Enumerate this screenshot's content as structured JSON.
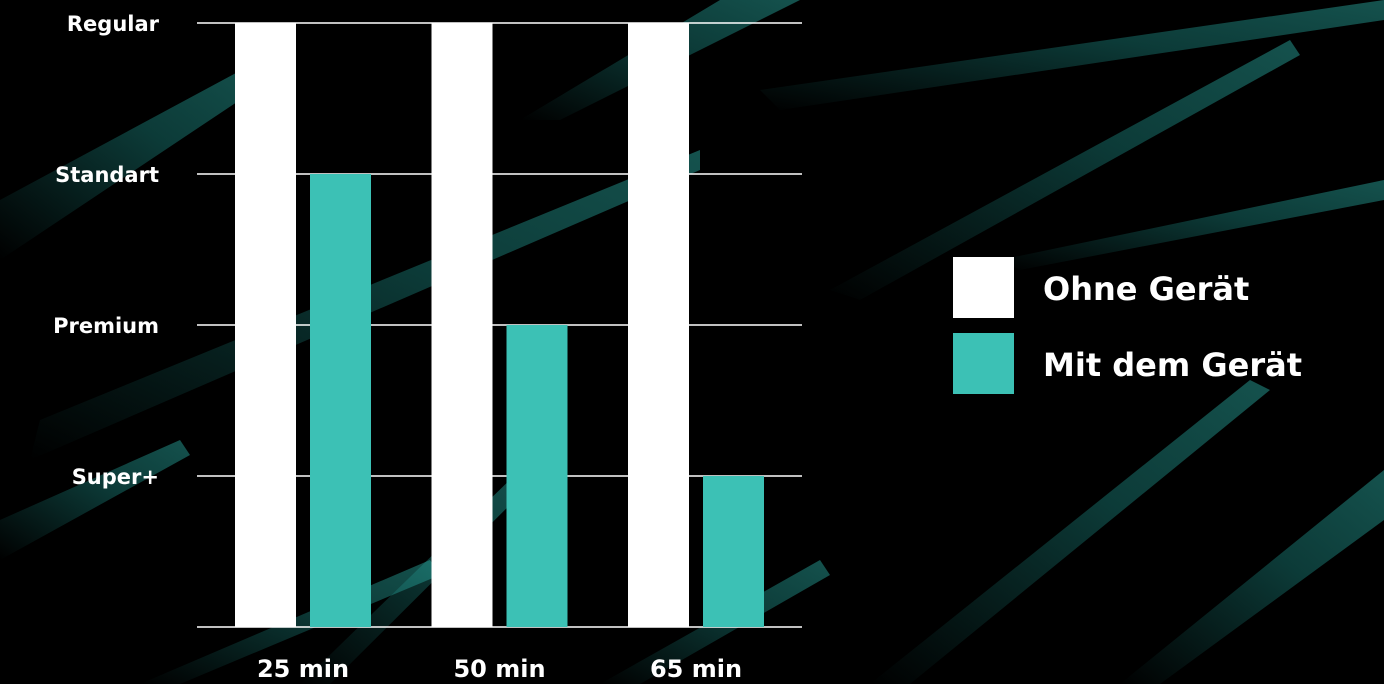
{
  "colors": {
    "background": "#000000",
    "streak": "#1e8f88",
    "ohne": "#ffffff",
    "mit": "#3cc1b5",
    "gridline": "#ffffff",
    "text": "#ffffff"
  },
  "chart_data": {
    "type": "bar",
    "title": "",
    "xlabel": "",
    "ylabel": "",
    "categories": [
      "25 min",
      "50 min",
      "65 min"
    ],
    "y_levels": [
      "Super+",
      "Premium",
      "Standart",
      "Regular"
    ],
    "ylim": [
      0,
      4
    ],
    "grid": true,
    "legend_position": "right",
    "series": [
      {
        "name": "Ohne Gerät",
        "color": "#ffffff",
        "values": [
          4,
          4,
          4
        ]
      },
      {
        "name": "Mit dem Gerät",
        "color": "#3cc1b5",
        "values": [
          3,
          2,
          1
        ]
      }
    ]
  }
}
